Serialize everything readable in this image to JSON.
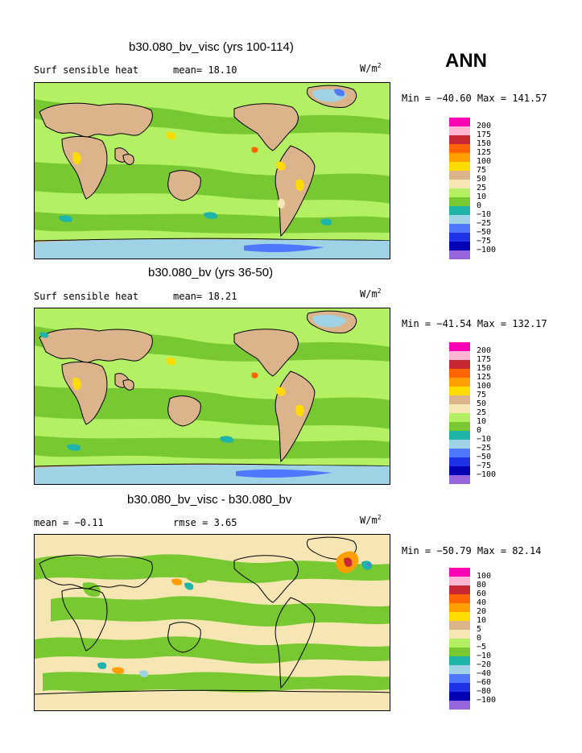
{
  "season": "ANN",
  "colors": {
    "palette": [
      "#ff00b4",
      "#ffb4d2",
      "#c82832",
      "#ff6400",
      "#ffa000",
      "#ffdc00",
      "#dcb48c",
      "#f5e6b4",
      "#b4f064",
      "#78c832",
      "#1eb4aa",
      "#a0d2e6",
      "#5078ff",
      "#1e32e6",
      "#0000b4",
      "#9664dc"
    ],
    "land_outline": "#000000"
  },
  "panels": [
    {
      "title": "b30.080_bv_visc (yrs 100-114)",
      "left_label": "Surf sensible heat",
      "mid_label": "mean=  18.10",
      "units_base": "W/m",
      "units_exp": "2",
      "minmax": "Min = −40.60 Max = 141.57",
      "legend_labels": [
        "200",
        "175",
        "150",
        "125",
        "100",
        "75",
        "50",
        "25",
        "10",
        "0",
        "−10",
        "−25",
        "−50",
        "−75",
        "−100"
      ]
    },
    {
      "title": "b30.080_bv (yrs 36-50)",
      "left_label": "Surf sensible heat",
      "mid_label": "mean=  18.21",
      "units_base": "W/m",
      "units_exp": "2",
      "minmax": "Min = −41.54 Max = 132.17",
      "legend_labels": [
        "200",
        "175",
        "150",
        "125",
        "100",
        "75",
        "50",
        "25",
        "10",
        "0",
        "−10",
        "−25",
        "−50",
        "−75",
        "−100"
      ]
    },
    {
      "title": "b30.080_bv_visc - b30.080_bv",
      "left_label": "mean =  −0.11",
      "mid_label": "rmse =   3.65",
      "units_base": "W/m",
      "units_exp": "2",
      "minmax": "Min = −50.79 Max =  82.14",
      "legend_labels": [
        "100",
        "80",
        "60",
        "40",
        "20",
        "10",
        "5",
        "0",
        "−5",
        "−10",
        "−20",
        "−40",
        "−60",
        "−80",
        "−100"
      ]
    }
  ]
}
